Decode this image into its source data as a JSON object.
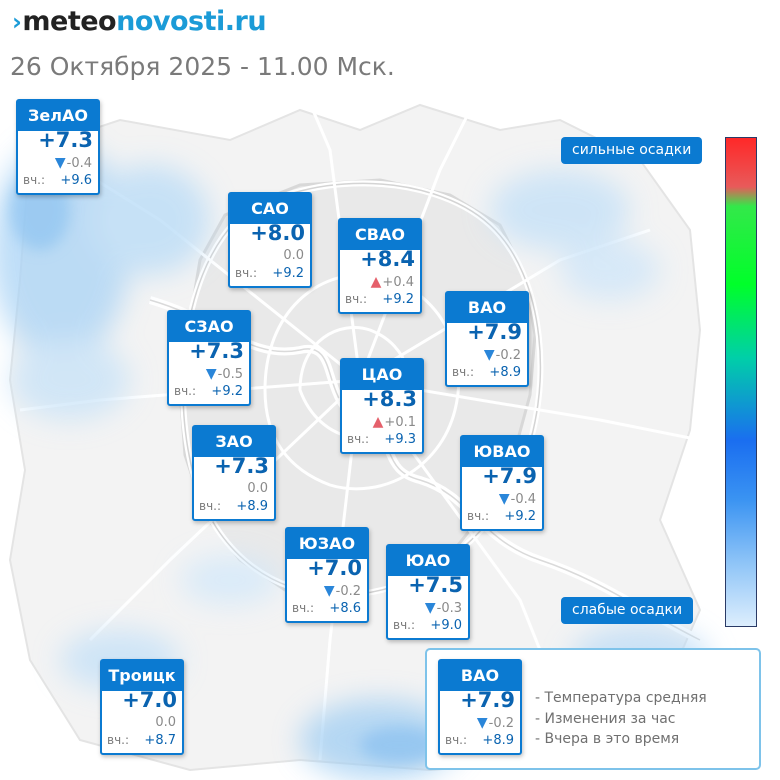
{
  "site": {
    "logo_mark": "›",
    "logo_part1": "meteo",
    "logo_part2": "novosti.ru"
  },
  "subtitle": "26 Октября 2025 - 11.00 Мск.",
  "yesterday_prefix": "вч.:",
  "colors": {
    "card_header": "#0b7ad1",
    "temperature_text": "#0a63b0",
    "arrow_down": "#2a86d9",
    "arrow_up": "#e5606b",
    "legend_border": "#7ec3ea",
    "precip_overlay": "#b7dcf7"
  },
  "scale": {
    "strong_label": "сильные осадки",
    "weak_label": "слабые осадки",
    "gradient": [
      "#ff2828",
      "#e85a5a",
      "#00ff2a",
      "#00cfa8",
      "#1a6ef0",
      "#3a93f2",
      "#8ec4f7",
      "#ddeefd"
    ]
  },
  "districts": [
    {
      "name": "ЗелАО",
      "temp": "+7.3",
      "trend": "down",
      "delta": "-0.4",
      "yesterday": "+9.6"
    },
    {
      "name": "САО",
      "temp": "+8.0",
      "trend": "none",
      "delta": "0.0",
      "yesterday": "+9.2"
    },
    {
      "name": "СВАО",
      "temp": "+8.4",
      "trend": "up",
      "delta": "+0.4",
      "yesterday": "+9.2"
    },
    {
      "name": "СЗАО",
      "temp": "+7.3",
      "trend": "down",
      "delta": "-0.5",
      "yesterday": "+9.2"
    },
    {
      "name": "ВАО",
      "temp": "+7.9",
      "trend": "down",
      "delta": "-0.2",
      "yesterday": "+8.9"
    },
    {
      "name": "ЦАО",
      "temp": "+8.3",
      "trend": "up",
      "delta": "+0.1",
      "yesterday": "+9.3"
    },
    {
      "name": "ЗАО",
      "temp": "+7.3",
      "trend": "none",
      "delta": "0.0",
      "yesterday": "+8.9"
    },
    {
      "name": "ЮВАО",
      "temp": "+7.9",
      "trend": "down",
      "delta": "-0.4",
      "yesterday": "+9.2"
    },
    {
      "name": "ЮЗАО",
      "temp": "+7.0",
      "trend": "down",
      "delta": "-0.2",
      "yesterday": "+8.6"
    },
    {
      "name": "ЮАО",
      "temp": "+7.5",
      "trend": "down",
      "delta": "-0.3",
      "yesterday": "+9.0"
    },
    {
      "name": "Троицк",
      "temp": "+7.0",
      "trend": "none",
      "delta": "0.0",
      "yesterday": "+8.7"
    }
  ],
  "legend": {
    "sample": {
      "name": "ВАО",
      "temp": "+7.9",
      "trend": "down",
      "delta": "-0.2",
      "yesterday": "+8.9"
    },
    "items": [
      "- Температура средняя",
      "- Изменения за час",
      "- Вчера в это время"
    ]
  },
  "arrow_glyphs": {
    "up": "▲",
    "down": "▼"
  }
}
